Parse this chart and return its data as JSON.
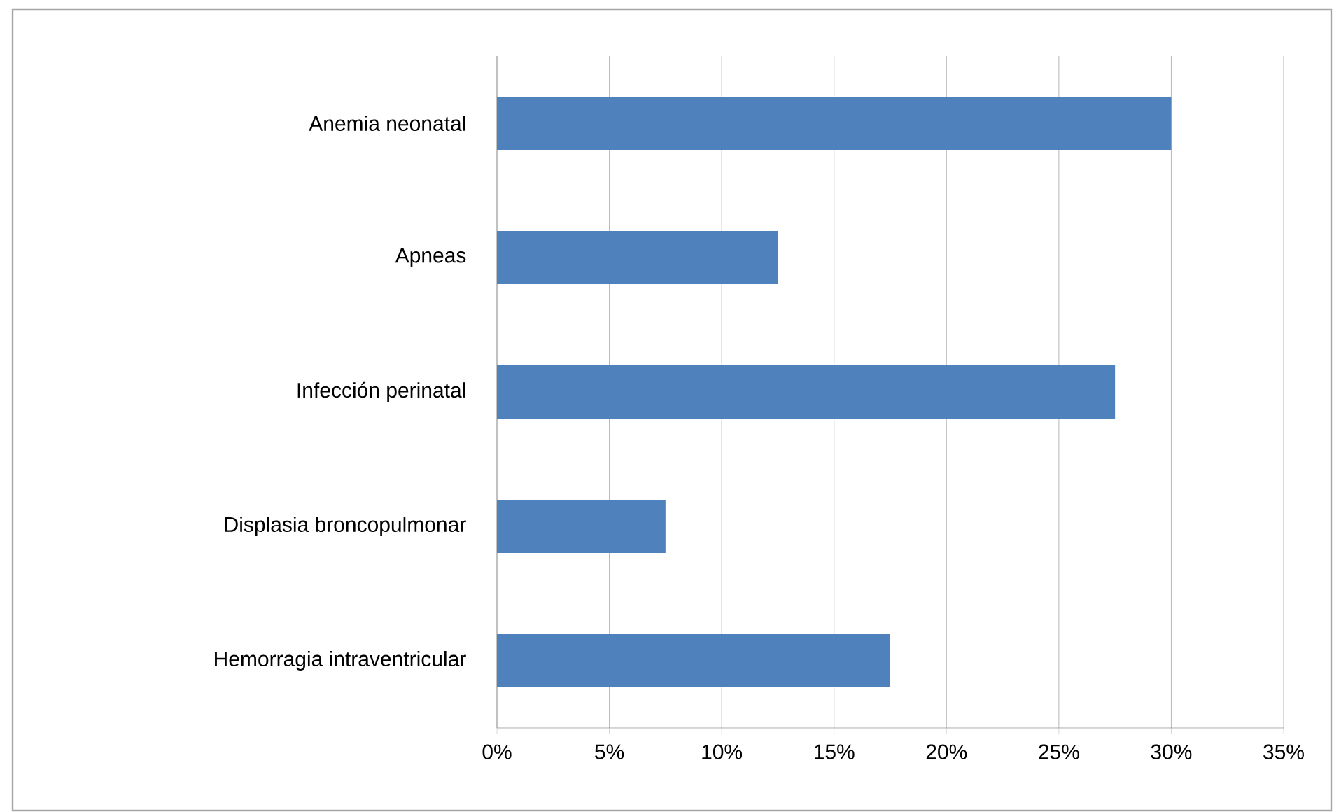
{
  "chart_data": {
    "type": "bar",
    "orientation": "horizontal",
    "categories": [
      "Anemia neonatal",
      "Apneas",
      "Infección perinatal",
      "Displasia broncopulmonar",
      "Hemorragia intraventricular"
    ],
    "values": [
      30,
      12.5,
      27.5,
      7.5,
      17.5
    ],
    "color": "#4f81bd",
    "xlim": [
      0,
      35
    ],
    "xticks": [
      {
        "value": 0,
        "label": "0%"
      },
      {
        "value": 5,
        "label": "5%"
      },
      {
        "value": 10,
        "label": "10%"
      },
      {
        "value": 15,
        "label": "15%"
      },
      {
        "value": 20,
        "label": "20%"
      },
      {
        "value": 25,
        "label": "25%"
      },
      {
        "value": 30,
        "label": "30%"
      },
      {
        "value": 35,
        "label": "35%"
      }
    ],
    "grid": "x"
  }
}
